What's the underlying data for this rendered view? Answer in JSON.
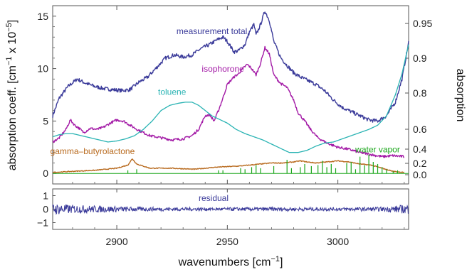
{
  "chart_data": {
    "type": "line",
    "x_label": "wavenumbers",
    "x_unit": "[cm",
    "x_unit_exp": "−1",
    "x_unit_close": "]",
    "x_ticks": [
      "2900",
      "2950",
      "3000"
    ],
    "xlim": [
      2871,
      3032
    ],
    "main_panel": {
      "y_left_label": "absorption coeff.",
      "y_left_unit": "[cm",
      "y_left_unit_exp1": "−1",
      "y_left_unit_mid": " x 10",
      "y_left_unit_exp2": "−5",
      "y_left_unit_close": "]",
      "y_left_ticks": [
        "0",
        "5",
        "10",
        "15"
      ],
      "ylim_left": [
        -1,
        16
      ],
      "y_right_label": "absorption",
      "y_right_ticks": [
        "0.0",
        "0.2",
        "0.4",
        "0.6",
        "0.8",
        "0.9",
        "0.95"
      ],
      "series": [
        {
          "name": "measurement total",
          "color": "#3b3b9a",
          "points": [
            [
              2871,
              5.5
            ],
            [
              2874,
              7.2
            ],
            [
              2878,
              8.3
            ],
            [
              2882,
              9.0
            ],
            [
              2886,
              8.6
            ],
            [
              2890,
              8.3
            ],
            [
              2894,
              8.1
            ],
            [
              2898,
              8.0
            ],
            [
              2902,
              7.9
            ],
            [
              2906,
              8.0
            ],
            [
              2910,
              8.7
            ],
            [
              2914,
              9.2
            ],
            [
              2918,
              10.1
            ],
            [
              2922,
              11.0
            ],
            [
              2926,
              11.3
            ],
            [
              2930,
              11.1
            ],
            [
              2934,
              11.3
            ],
            [
              2938,
              11.9
            ],
            [
              2942,
              12.3
            ],
            [
              2945,
              12.7
            ],
            [
              2948,
              13.0
            ],
            [
              2950,
              12.6
            ],
            [
              2953,
              11.6
            ],
            [
              2955,
              11.7
            ],
            [
              2958,
              12.3
            ],
            [
              2960,
              13.5
            ],
            [
              2962,
              14.2
            ],
            [
              2963,
              13.2
            ],
            [
              2965,
              14.2
            ],
            [
              2967,
              15.5
            ],
            [
              2969,
              14.6
            ],
            [
              2971,
              12.6
            ],
            [
              2974,
              11.1
            ],
            [
              2977,
              10.3
            ],
            [
              2980,
              9.6
            ],
            [
              2983,
              9.2
            ],
            [
              2986,
              8.9
            ],
            [
              2990,
              8.5
            ],
            [
              2994,
              7.9
            ],
            [
              2998,
              7.0
            ],
            [
              3002,
              6.3
            ],
            [
              3006,
              5.9
            ],
            [
              3010,
              5.5
            ],
            [
              3014,
              5.1
            ],
            [
              3018,
              5.0
            ],
            [
              3022,
              5.5
            ],
            [
              3026,
              6.8
            ],
            [
              3029,
              9.0
            ],
            [
              3032,
              12.5
            ]
          ]
        },
        {
          "name": "isophorone",
          "color": "#a31aa6",
          "points": [
            [
              2871,
              3.0
            ],
            [
              2874,
              3.4
            ],
            [
              2877,
              4.2
            ],
            [
              2879,
              5.1
            ],
            [
              2881,
              4.6
            ],
            [
              2883,
              4.3
            ],
            [
              2885,
              3.9
            ],
            [
              2888,
              4.3
            ],
            [
              2891,
              4.2
            ],
            [
              2894,
              4.4
            ],
            [
              2897,
              4.8
            ],
            [
              2900,
              5.1
            ],
            [
              2903,
              5.0
            ],
            [
              2906,
              4.6
            ],
            [
              2910,
              4.1
            ],
            [
              2915,
              3.6
            ],
            [
              2920,
              3.4
            ],
            [
              2925,
              3.2
            ],
            [
              2930,
              3.3
            ],
            [
              2934,
              3.6
            ],
            [
              2937,
              4.2
            ],
            [
              2940,
              5.5
            ],
            [
              2942,
              5.6
            ],
            [
              2944,
              5.0
            ],
            [
              2946,
              6.0
            ],
            [
              2948,
              7.2
            ],
            [
              2950,
              8.5
            ],
            [
              2953,
              9.2
            ],
            [
              2955,
              9.5
            ],
            [
              2957,
              10.0
            ],
            [
              2959,
              10.4
            ],
            [
              2961,
              10.0
            ],
            [
              2963,
              9.4
            ],
            [
              2965,
              10.5
            ],
            [
              2967,
              12.0
            ],
            [
              2969,
              11.4
            ],
            [
              2971,
              9.4
            ],
            [
              2974,
              8.6
            ],
            [
              2977,
              8.2
            ],
            [
              2980,
              7.0
            ],
            [
              2982,
              5.8
            ],
            [
              2985,
              5.0
            ],
            [
              2988,
              4.1
            ],
            [
              2991,
              3.4
            ],
            [
              2995,
              2.9
            ],
            [
              3000,
              2.5
            ],
            [
              3005,
              2.3
            ],
            [
              3010,
              2.0
            ],
            [
              3015,
              1.8
            ],
            [
              3020,
              1.6
            ],
            [
              3025,
              1.7
            ],
            [
              3030,
              1.6
            ]
          ]
        },
        {
          "name": "toluene",
          "color": "#29b3b3",
          "points": [
            [
              2871,
              3.5
            ],
            [
              2874,
              3.7
            ],
            [
              2877,
              3.8
            ],
            [
              2880,
              3.8
            ],
            [
              2884,
              3.6
            ],
            [
              2888,
              3.4
            ],
            [
              2892,
              3.2
            ],
            [
              2896,
              3.0
            ],
            [
              2900,
              3.1
            ],
            [
              2904,
              3.3
            ],
            [
              2908,
              3.6
            ],
            [
              2912,
              4.2
            ],
            [
              2916,
              5.0
            ],
            [
              2920,
              6.0
            ],
            [
              2924,
              6.5
            ],
            [
              2928,
              6.7
            ],
            [
              2931,
              6.8
            ],
            [
              2934,
              6.8
            ],
            [
              2937,
              6.5
            ],
            [
              2940,
              6.0
            ],
            [
              2943,
              5.5
            ],
            [
              2946,
              5.2
            ],
            [
              2950,
              4.8
            ],
            [
              2954,
              4.2
            ],
            [
              2958,
              3.8
            ],
            [
              2962,
              3.5
            ],
            [
              2966,
              3.2
            ],
            [
              2970,
              2.8
            ],
            [
              2974,
              2.4
            ],
            [
              2978,
              2.0
            ],
            [
              2982,
              2.0
            ],
            [
              2986,
              2.2
            ],
            [
              2990,
              2.6
            ],
            [
              2994,
              2.9
            ],
            [
              2998,
              3.0
            ],
            [
              3002,
              3.3
            ],
            [
              3006,
              3.6
            ],
            [
              3010,
              3.9
            ],
            [
              3014,
              4.2
            ],
            [
              3018,
              4.6
            ],
            [
              3022,
              5.5
            ],
            [
              3026,
              7.5
            ],
            [
              3029,
              9.5
            ],
            [
              3032,
              12.3
            ]
          ]
        },
        {
          "name": "gamma–butyrolactone",
          "color": "#b86a1e",
          "points": [
            [
              2871,
              0.1
            ],
            [
              2880,
              0.2
            ],
            [
              2890,
              0.3
            ],
            [
              2900,
              0.5
            ],
            [
              2905,
              0.8
            ],
            [
              2907,
              1.4
            ],
            [
              2909,
              0.9
            ],
            [
              2915,
              0.5
            ],
            [
              2925,
              0.5
            ],
            [
              2935,
              0.4
            ],
            [
              2945,
              0.6
            ],
            [
              2955,
              0.7
            ],
            [
              2960,
              0.8
            ],
            [
              2965,
              0.9
            ],
            [
              2970,
              1.0
            ],
            [
              2975,
              1.0
            ],
            [
              2980,
              1.1
            ],
            [
              2983,
              1.2
            ],
            [
              2986,
              1.1
            ],
            [
              2990,
              1.0
            ],
            [
              2995,
              1.1
            ],
            [
              3000,
              1.2
            ],
            [
              3005,
              1.1
            ],
            [
              3010,
              0.9
            ],
            [
              3015,
              0.8
            ],
            [
              3020,
              0.5
            ],
            [
              3025,
              0.2
            ],
            [
              3030,
              0.1
            ]
          ]
        },
        {
          "name": "water vapor",
          "color": "#1aa61a",
          "baseline": 0,
          "lines": [
            [
              2905,
              0.3
            ],
            [
              2909,
              0.4
            ],
            [
              2946,
              0.3
            ],
            [
              2948,
              0.3
            ],
            [
              2956,
              0.5
            ],
            [
              2958,
              0.4
            ],
            [
              2961,
              0.6
            ],
            [
              2963,
              0.8
            ],
            [
              2965,
              0.5
            ],
            [
              2971,
              0.7
            ],
            [
              2977,
              1.3
            ],
            [
              2979,
              0.5
            ],
            [
              2983,
              0.6
            ],
            [
              2985,
              0.9
            ],
            [
              2988,
              0.7
            ],
            [
              2991,
              0.8
            ],
            [
              2993,
              1.2
            ],
            [
              2995,
              0.6
            ],
            [
              2997,
              0.9
            ],
            [
              2999,
              0.5
            ],
            [
              3004,
              1.0
            ],
            [
              3006,
              1.1
            ],
            [
              3008,
              0.4
            ],
            [
              3010,
              1.6
            ],
            [
              3012,
              0.8
            ],
            [
              3014,
              1.8
            ],
            [
              3016,
              1.1
            ],
            [
              3018,
              0.9
            ],
            [
              3020,
              0.6
            ],
            [
              3022,
              0.4
            ],
            [
              3025,
              0.2
            ],
            [
              3027,
              0.3
            ]
          ]
        }
      ],
      "annotations": [
        {
          "text": "measurement total",
          "color": "#3b3b9a",
          "x": 2943,
          "y": 13.3
        },
        {
          "text": "isophorone",
          "color": "#a31aa6",
          "x": 2948,
          "y": 9.7
        },
        {
          "text": "toluene",
          "color": "#29b3b3",
          "x": 2925,
          "y": 7.5
        },
        {
          "text": "gamma–butyrolactone",
          "color": "#b86a1e",
          "x": 2889,
          "y": 1.85
        },
        {
          "text": "water vapor",
          "color": "#1aa61a",
          "x": 3018,
          "y": 2.0
        }
      ]
    },
    "residual_panel": {
      "label": "residual",
      "color": "#3b3b9a",
      "y_ticks": [
        "1",
        "0",
        "−1"
      ],
      "ylim": [
        -1.5,
        1.5
      ],
      "noise_profile": [
        [
          2871,
          0.55
        ],
        [
          2880,
          0.4
        ],
        [
          2895,
          0.3
        ],
        [
          2910,
          0.2
        ],
        [
          2940,
          0.15
        ],
        [
          2970,
          0.18
        ],
        [
          3000,
          0.15
        ],
        [
          3020,
          0.2
        ],
        [
          3032,
          0.45
        ]
      ]
    }
  }
}
